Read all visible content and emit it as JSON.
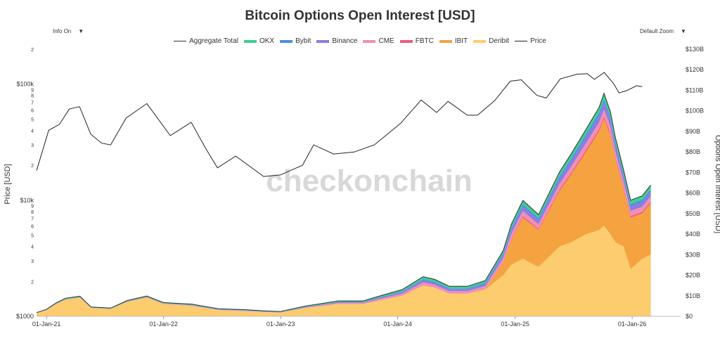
{
  "controls": {
    "info": "Info On",
    "zoom": "Default Zoom"
  },
  "watermark": "checkonchain",
  "colors": {
    "OKX": "#3ecf8e",
    "Bybit": "#4a90e2",
    "Binance": "#8e7ce0",
    "CME": "#f28fb1",
    "FBTC": "#ef5a7a",
    "IBIT": "#f4a340",
    "Deribit": "#fccc6e",
    "Aggregate Total": "#333333",
    "Price": "#222222"
  },
  "chart_data": {
    "type": "area",
    "title": "Bitcoin Options Open Interest [USD]",
    "ylabel_left": "Price [USD]",
    "ylabel_right": "Options Open Interest [USD]",
    "y_left_scale": "log",
    "y_left_range": [
      1000,
      200000
    ],
    "y_left_ticks": [
      "$1000",
      "2",
      "3",
      "4",
      "5",
      "6",
      "7",
      "8",
      "9",
      "$10k",
      "2",
      "3",
      "4",
      "5",
      "6",
      "7",
      "8",
      "9",
      "$100k",
      "2"
    ],
    "y_right_range": [
      0,
      130
    ],
    "y_right_ticks": [
      "$0",
      "$10B",
      "$20B",
      "$30B",
      "$40B",
      "$50B",
      "$60B",
      "$70B",
      "$80B",
      "$90B",
      "$100B",
      "$110B",
      "$120B",
      "$130B"
    ],
    "x_range": [
      "2020-12-01",
      "2026-06-01"
    ],
    "x_ticks": [
      "01-Jan-21",
      "01-Jan-22",
      "01-Jan-23",
      "01-Jan-24",
      "01-Jan-25",
      "01-Jan-26"
    ],
    "legend": [
      "Aggregate Total",
      "OKX",
      "Bybit",
      "Binance",
      "CME",
      "FBTC",
      "IBIT",
      "Deribit",
      "Price"
    ],
    "grid": false,
    "legend_position": "top-center",
    "dates": [
      "2020-12-01",
      "2021-01-01",
      "2021-02-01",
      "2021-03-01",
      "2021-04-15",
      "2021-05-20",
      "2021-07-20",
      "2021-09-10",
      "2021-11-10",
      "2021-12-31",
      "2022-03-31",
      "2022-06-20",
      "2022-09-15",
      "2022-11-15",
      "2022-12-31",
      "2023-03-20",
      "2023-06-30",
      "2023-09-15",
      "2023-11-15",
      "2024-01-15",
      "2024-03-20",
      "2024-04-25",
      "2024-06-10",
      "2024-08-05",
      "2024-09-30",
      "2024-11-25",
      "2024-12-20",
      "2025-01-25",
      "2025-03-15",
      "2025-05-20",
      "2025-06-25",
      "2025-08-10",
      "2025-09-20",
      "2025-10-05",
      "2025-10-25",
      "2025-11-10",
      "2025-12-05",
      "2025-12-27",
      "2026-02-01",
      "2026-02-28"
    ],
    "series_oi": [
      {
        "name": "Deribit",
        "values": [
          1.5,
          3,
          6,
          8,
          9,
          4,
          3.5,
          7,
          9,
          6,
          5,
          3,
          2.5,
          2,
          1.8,
          4,
          6,
          6,
          8,
          10,
          15,
          14,
          11,
          11,
          13,
          20,
          25,
          28,
          24,
          34,
          36,
          40,
          42,
          44,
          40,
          36,
          34,
          23,
          28,
          30
        ]
      },
      {
        "name": "IBIT",
        "values": [
          0,
          0,
          0,
          0,
          0,
          0,
          0,
          0,
          0,
          0,
          0,
          0,
          0,
          0,
          0,
          0,
          0,
          0,
          0,
          0,
          0,
          0,
          0,
          0,
          0.3,
          6,
          12,
          20,
          18,
          27,
          33,
          40,
          48,
          52,
          48,
          40,
          28,
          25,
          22,
          25
        ]
      },
      {
        "name": "FBTC",
        "values": [
          0,
          0,
          0,
          0,
          0,
          0,
          0,
          0,
          0,
          0,
          0,
          0,
          0,
          0,
          0,
          0,
          0,
          0,
          0,
          0,
          0,
          0,
          0,
          0,
          0,
          0.3,
          0.5,
          0.7,
          0.6,
          0.8,
          0.9,
          1,
          1.1,
          1.2,
          1.1,
          1,
          0.9,
          0.8,
          0.8,
          0.8
        ]
      },
      {
        "name": "CME",
        "values": [
          0.1,
          0.1,
          0.2,
          0.3,
          0.3,
          0.2,
          0.2,
          0.3,
          0.4,
          0.3,
          0.3,
          0.2,
          0.2,
          0.2,
          0.1,
          0.3,
          0.5,
          0.5,
          0.8,
          1,
          1.5,
          1.3,
          1.2,
          1.2,
          1.4,
          2,
          2.5,
          2.5,
          2.2,
          2.8,
          3,
          3.2,
          3.3,
          3.5,
          3.2,
          3,
          2.6,
          2.4,
          2.5,
          2.6
        ]
      },
      {
        "name": "Binance",
        "values": [
          0,
          0,
          0,
          0,
          0,
          0,
          0,
          0,
          0,
          0,
          0.1,
          0.1,
          0.1,
          0.1,
          0.1,
          0.2,
          0.3,
          0.3,
          0.5,
          0.7,
          1,
          1,
          0.9,
          0.9,
          1,
          1.5,
          2,
          2.2,
          2,
          2.5,
          2.7,
          3,
          3.2,
          3.5,
          3.2,
          3,
          2.6,
          2.3,
          2.3,
          2.4
        ]
      },
      {
        "name": "Bybit",
        "values": [
          0,
          0,
          0,
          0,
          0,
          0,
          0,
          0,
          0,
          0,
          0.1,
          0.1,
          0.1,
          0.1,
          0.1,
          0.1,
          0.2,
          0.2,
          0.3,
          0.4,
          0.6,
          0.6,
          0.5,
          0.5,
          0.6,
          0.8,
          1,
          1.1,
          1,
          1.2,
          1.3,
          1.4,
          1.5,
          1.6,
          1.5,
          1.4,
          1.2,
          1.1,
          1.1,
          1.1
        ]
      },
      {
        "name": "OKX",
        "values": [
          0.2,
          0.3,
          0.4,
          0.5,
          0.5,
          0.3,
          0.3,
          0.4,
          0.5,
          0.4,
          0.4,
          0.3,
          0.3,
          0.2,
          0.2,
          0.4,
          0.5,
          0.5,
          0.7,
          0.9,
          1.2,
          1.1,
          1,
          1,
          1.1,
          1.4,
          1.7,
          1.9,
          1.7,
          2.1,
          2.2,
          2.4,
          2.6,
          2.8,
          2.6,
          2.4,
          2.1,
          1.9,
          1.9,
          2
        ]
      }
    ],
    "price": {
      "name": "Price",
      "dates": [
        "2020-12-01",
        "2021-01-08",
        "2021-02-10",
        "2021-03-13",
        "2021-04-14",
        "2021-05-19",
        "2021-06-22",
        "2021-07-20",
        "2021-09-06",
        "2021-11-10",
        "2022-01-22",
        "2022-03-28",
        "2022-05-12",
        "2022-06-18",
        "2022-08-14",
        "2022-11-09",
        "2022-12-31",
        "2023-03-10",
        "2023-04-14",
        "2023-06-15",
        "2023-08-18",
        "2023-10-20",
        "2024-01-10",
        "2024-03-14",
        "2024-05-01",
        "2024-06-06",
        "2024-08-05",
        "2024-09-06",
        "2024-10-29",
        "2024-12-17",
        "2025-01-20",
        "2025-03-10",
        "2025-04-08",
        "2025-05-22",
        "2025-07-14",
        "2025-08-14",
        "2025-09-05",
        "2025-10-06",
        "2025-11-04",
        "2025-11-21",
        "2025-12-15",
        "2026-01-15",
        "2026-02-01"
      ],
      "values": [
        18000,
        40000,
        45000,
        61000,
        64000,
        37000,
        31000,
        30000,
        51000,
        68000,
        36000,
        47000,
        28000,
        19000,
        24000,
        16000,
        16500,
        20000,
        30000,
        25000,
        26000,
        30000,
        46000,
        73000,
        57000,
        71000,
        54000,
        54000,
        72000,
        106000,
        109000,
        80000,
        76000,
        111000,
        122000,
        123000,
        110000,
        126000,
        101000,
        84000,
        88000,
        97000,
        95000
      ]
    }
  }
}
